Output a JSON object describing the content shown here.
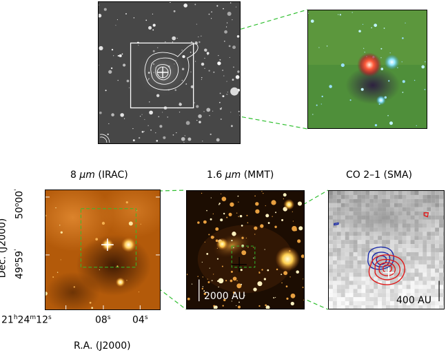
{
  "panels": {
    "irac": {
      "title_prefix": "8 ",
      "title_unit": "μm",
      "title_suffix": " (IRAC)"
    },
    "mmt": {
      "title_prefix": "1.6 ",
      "title_unit": "μm",
      "title_suffix": " (MMT)",
      "scalebar_label": "2000 AU"
    },
    "sma": {
      "title": "CO 2–1 (SMA)",
      "scalebar_label": "400 AU"
    }
  },
  "axes": {
    "ylabel": "Dec. (J2000)",
    "xlabel": "R.A. (J2000)",
    "yticks": [
      {
        "deg": "50",
        "deg_sup": "o",
        "arcmin": "00",
        "arcmin_sup": "'"
      },
      {
        "deg": "49",
        "deg_sup": "o",
        "arcmin": "59",
        "arcmin_sup": "'"
      }
    ],
    "xticks": [
      {
        "h": "21",
        "h_sup": "h",
        "m": "24",
        "m_sup": "m",
        "s": "12",
        "s_sup": "s"
      },
      {
        "s": "08",
        "s_sup": "s"
      },
      {
        "s": "04",
        "s_sup": "s"
      }
    ]
  },
  "colors": {
    "connector": "#2fbf2f",
    "contour_red": "#e01818",
    "contour_blue": "#1a2aa8",
    "irac_bg": "#b35a0a",
    "mmt_bg": "#1c0d02"
  }
}
